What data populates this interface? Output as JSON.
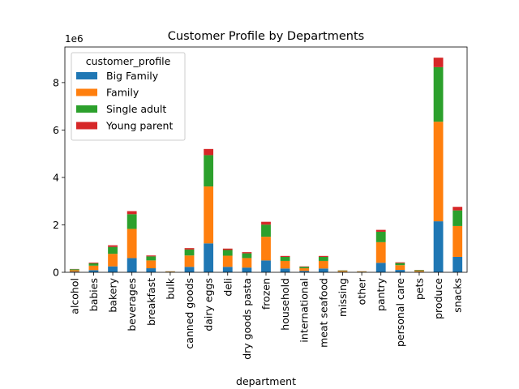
{
  "chart_data": {
    "type": "bar",
    "stacked": true,
    "title": "Customer Profile by Departments",
    "xlabel": "department",
    "ylabel": "",
    "y_offset_label": "1e6",
    "y_scale": 1000000,
    "ylim": [
      0,
      9.5
    ],
    "yticks": [
      "0",
      "2",
      "4",
      "6",
      "8"
    ],
    "grid": false,
    "legend": {
      "title": "customer_profile",
      "placement": "upper left"
    },
    "categories": [
      "alcohol",
      "babies",
      "bakery",
      "beverages",
      "breakfast",
      "bulk",
      "canned goods",
      "dairy eggs",
      "deli",
      "dry goods pasta",
      "frozen",
      "household",
      "international",
      "meat seafood",
      "missing",
      "other",
      "pantry",
      "personal care",
      "pets",
      "produce",
      "snacks"
    ],
    "series": [
      {
        "name": "Big Family",
        "color": "#1f77b4",
        "values": [
          0.03,
          0.09,
          0.25,
          0.6,
          0.17,
          0.01,
          0.23,
          1.22,
          0.23,
          0.2,
          0.5,
          0.16,
          0.06,
          0.16,
          0.02,
          0.01,
          0.4,
          0.1,
          0.02,
          2.15,
          0.65
        ]
      },
      {
        "name": "Family",
        "color": "#ff7f0e",
        "values": [
          0.06,
          0.19,
          0.53,
          1.23,
          0.33,
          0.02,
          0.48,
          2.4,
          0.47,
          0.4,
          1.0,
          0.32,
          0.11,
          0.32,
          0.04,
          0.02,
          0.87,
          0.2,
          0.04,
          4.2,
          1.3
        ]
      },
      {
        "name": "Single adult",
        "color": "#2ca02c",
        "values": [
          0.04,
          0.1,
          0.29,
          0.62,
          0.17,
          0.01,
          0.25,
          1.32,
          0.24,
          0.2,
          0.51,
          0.17,
          0.06,
          0.17,
          0.02,
          0.01,
          0.44,
          0.09,
          0.03,
          2.3,
          0.66
        ]
      },
      {
        "name": "Young parent",
        "color": "#d62728",
        "values": [
          0.01,
          0.03,
          0.07,
          0.13,
          0.04,
          0.005,
          0.06,
          0.26,
          0.06,
          0.05,
          0.12,
          0.04,
          0.02,
          0.04,
          0.005,
          0.005,
          0.08,
          0.03,
          0.01,
          0.4,
          0.15
        ]
      }
    ]
  }
}
